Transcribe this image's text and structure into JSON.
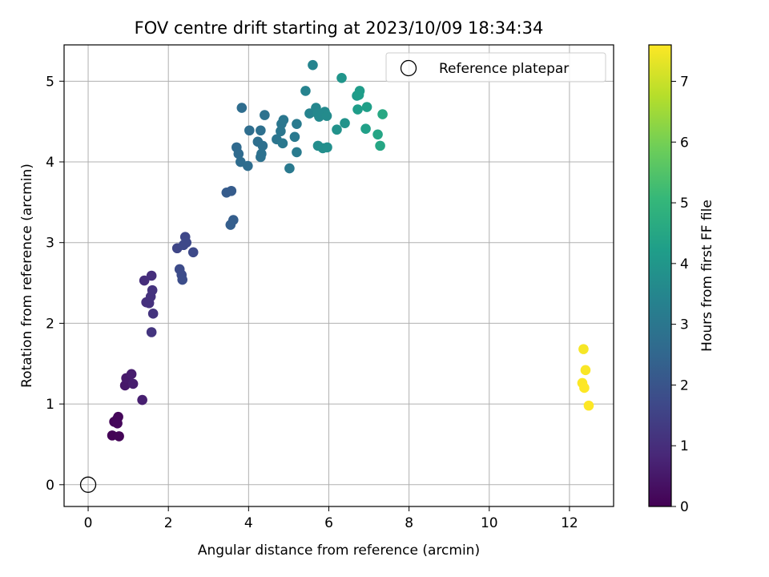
{
  "chart_data": {
    "type": "scatter",
    "title": "FOV centre drift starting at 2023/10/09 18:34:34",
    "xlabel": "Angular distance from reference (arcmin)",
    "ylabel": "Rotation from reference (arcmin)",
    "xlim": [
      -0.6,
      13.1
    ],
    "ylim": [
      -0.27,
      5.45
    ],
    "xticks": [
      0,
      2,
      4,
      6,
      8,
      10,
      12
    ],
    "yticks": [
      0,
      1,
      2,
      3,
      4,
      5
    ],
    "grid": true,
    "legend": {
      "placement": "top-right",
      "entries": [
        "Reference platepar"
      ]
    },
    "reference_point": {
      "x": 0,
      "y": 0,
      "label": "Reference platepar",
      "marker": "hollow-circle",
      "color": "#000000"
    },
    "colorbar": {
      "label": "Hours from first FF file",
      "range": [
        0,
        7.6
      ],
      "ticks": [
        0,
        1,
        2,
        3,
        4,
        5,
        6,
        7
      ],
      "colormap": "viridis",
      "stops": [
        "#440154",
        "#482878",
        "#3e4989",
        "#31688e",
        "#26828e",
        "#1f9e89",
        "#35b779",
        "#6ece58",
        "#b5de2b",
        "#fde725"
      ]
    },
    "series": [
      {
        "points": [
          {
            "x": 0.6,
            "y": 0.61,
            "c": 0.05
          },
          {
            "x": 0.77,
            "y": 0.6,
            "c": 0.08
          },
          {
            "x": 0.65,
            "y": 0.78,
            "c": 0.1
          },
          {
            "x": 0.72,
            "y": 0.81,
            "c": 0.12
          },
          {
            "x": 0.75,
            "y": 0.84,
            "c": 0.14
          },
          {
            "x": 0.73,
            "y": 0.76,
            "c": 0.16
          },
          {
            "x": 0.92,
            "y": 1.23,
            "c": 0.5
          },
          {
            "x": 0.95,
            "y": 1.32,
            "c": 0.55
          },
          {
            "x": 1.08,
            "y": 1.37,
            "c": 0.6
          },
          {
            "x": 1.12,
            "y": 1.25,
            "c": 0.62
          },
          {
            "x": 1.35,
            "y": 1.05,
            "c": 0.65
          },
          {
            "x": 1.4,
            "y": 2.53,
            "c": 1.0
          },
          {
            "x": 1.58,
            "y": 2.59,
            "c": 1.02
          },
          {
            "x": 1.45,
            "y": 2.26,
            "c": 1.05
          },
          {
            "x": 1.52,
            "y": 2.25,
            "c": 1.07
          },
          {
            "x": 1.56,
            "y": 2.33,
            "c": 1.1
          },
          {
            "x": 1.6,
            "y": 2.41,
            "c": 1.12
          },
          {
            "x": 1.62,
            "y": 2.12,
            "c": 1.15
          },
          {
            "x": 1.58,
            "y": 1.89,
            "c": 1.18
          },
          {
            "x": 2.22,
            "y": 2.93,
            "c": 1.6
          },
          {
            "x": 2.42,
            "y": 3.07,
            "c": 1.65
          },
          {
            "x": 2.45,
            "y": 3.0,
            "c": 1.68
          },
          {
            "x": 2.38,
            "y": 2.97,
            "c": 1.7
          },
          {
            "x": 2.62,
            "y": 2.88,
            "c": 1.72
          },
          {
            "x": 2.28,
            "y": 2.67,
            "c": 1.75
          },
          {
            "x": 2.33,
            "y": 2.6,
            "c": 1.78
          },
          {
            "x": 2.35,
            "y": 2.54,
            "c": 1.8
          },
          {
            "x": 3.45,
            "y": 3.62,
            "c": 2.2
          },
          {
            "x": 3.57,
            "y": 3.64,
            "c": 2.22
          },
          {
            "x": 3.62,
            "y": 3.28,
            "c": 2.25
          },
          {
            "x": 3.55,
            "y": 3.22,
            "c": 2.28
          },
          {
            "x": 3.7,
            "y": 4.18,
            "c": 2.6
          },
          {
            "x": 3.75,
            "y": 4.1,
            "c": 2.62
          },
          {
            "x": 3.8,
            "y": 4.0,
            "c": 2.65
          },
          {
            "x": 3.98,
            "y": 3.95,
            "c": 2.68
          },
          {
            "x": 3.83,
            "y": 4.67,
            "c": 2.7
          },
          {
            "x": 4.02,
            "y": 4.39,
            "c": 2.72
          },
          {
            "x": 4.23,
            "y": 4.25,
            "c": 2.75
          },
          {
            "x": 4.3,
            "y": 4.39,
            "c": 2.78
          },
          {
            "x": 4.35,
            "y": 4.2,
            "c": 2.8
          },
          {
            "x": 4.32,
            "y": 4.1,
            "c": 2.82
          },
          {
            "x": 4.3,
            "y": 4.06,
            "c": 2.84
          },
          {
            "x": 4.4,
            "y": 4.58,
            "c": 2.86
          },
          {
            "x": 4.7,
            "y": 4.28,
            "c": 2.95
          },
          {
            "x": 4.8,
            "y": 4.38,
            "c": 2.98
          },
          {
            "x": 4.82,
            "y": 4.47,
            "c": 3.0
          },
          {
            "x": 4.87,
            "y": 4.52,
            "c": 3.02
          },
          {
            "x": 4.85,
            "y": 4.23,
            "c": 3.05
          },
          {
            "x": 5.02,
            "y": 3.92,
            "c": 3.08
          },
          {
            "x": 5.15,
            "y": 4.31,
            "c": 3.1
          },
          {
            "x": 5.2,
            "y": 4.47,
            "c": 3.12
          },
          {
            "x": 5.2,
            "y": 4.12,
            "c": 3.15
          },
          {
            "x": 5.42,
            "y": 4.88,
            "c": 3.4
          },
          {
            "x": 5.52,
            "y": 4.6,
            "c": 3.42
          },
          {
            "x": 5.6,
            "y": 5.2,
            "c": 3.45
          },
          {
            "x": 5.68,
            "y": 4.67,
            "c": 3.5
          },
          {
            "x": 5.72,
            "y": 4.6,
            "c": 3.55
          },
          {
            "x": 5.76,
            "y": 4.56,
            "c": 3.6
          },
          {
            "x": 5.9,
            "y": 4.62,
            "c": 3.62
          },
          {
            "x": 5.95,
            "y": 4.57,
            "c": 3.65
          },
          {
            "x": 5.73,
            "y": 4.2,
            "c": 3.7
          },
          {
            "x": 5.85,
            "y": 4.17,
            "c": 3.75
          },
          {
            "x": 5.96,
            "y": 4.18,
            "c": 3.78
          },
          {
            "x": 6.2,
            "y": 4.4,
            "c": 3.85
          },
          {
            "x": 6.4,
            "y": 4.48,
            "c": 3.9
          },
          {
            "x": 6.32,
            "y": 5.04,
            "c": 3.95
          },
          {
            "x": 6.7,
            "y": 4.82,
            "c": 4.1
          },
          {
            "x": 6.77,
            "y": 4.88,
            "c": 4.15
          },
          {
            "x": 6.75,
            "y": 4.83,
            "c": 4.18
          },
          {
            "x": 6.72,
            "y": 4.65,
            "c": 4.2
          },
          {
            "x": 6.95,
            "y": 4.68,
            "c": 4.25
          },
          {
            "x": 6.92,
            "y": 4.41,
            "c": 4.3
          },
          {
            "x": 7.22,
            "y": 4.34,
            "c": 4.45
          },
          {
            "x": 7.28,
            "y": 4.2,
            "c": 4.5
          },
          {
            "x": 7.34,
            "y": 4.59,
            "c": 4.55
          },
          {
            "x": 12.35,
            "y": 1.68,
            "c": 7.52
          },
          {
            "x": 12.4,
            "y": 1.42,
            "c": 7.55
          },
          {
            "x": 12.32,
            "y": 1.26,
            "c": 7.58
          },
          {
            "x": 12.37,
            "y": 1.2,
            "c": 7.6
          },
          {
            "x": 12.48,
            "y": 0.98,
            "c": 7.62
          }
        ]
      }
    ]
  }
}
